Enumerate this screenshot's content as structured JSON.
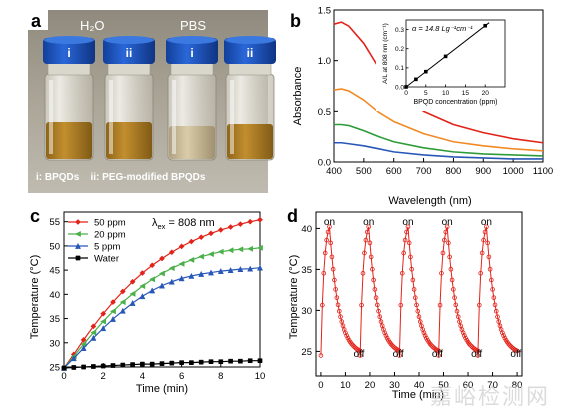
{
  "panel_a": {
    "letter": "a",
    "group_labels": [
      "H₂O",
      "PBS"
    ],
    "vial_labels": [
      "i",
      "ii",
      "i",
      "ii"
    ],
    "caption": "i: BPQDs    ii: PEG-modified BPQDs",
    "colors": {
      "bg_top": "#9a9384",
      "bg_bottom": "#b7b2a6",
      "cap": "#1d56c4",
      "liquid_dark": "#a8781c",
      "liquid_light": "#c9b47e"
    }
  },
  "chart_data": [
    {
      "id": "panel_b",
      "letter": "b",
      "type": "line",
      "xlabel": "Wavelength (nm)",
      "ylabel": "Absorbance",
      "xlim": [
        400,
        1100
      ],
      "ylim": [
        0.0,
        1.5
      ],
      "xticks": [
        400,
        500,
        600,
        700,
        800,
        900,
        1000,
        1100
      ],
      "yticks": [
        0.0,
        0.5,
        1.0,
        1.5
      ],
      "ytick_labels": [
        "0.0",
        "0.5",
        "1.0",
        "1.5"
      ],
      "x": [
        400,
        425,
        450,
        500,
        550,
        600,
        700,
        800,
        900,
        1000,
        1100
      ],
      "series": [
        {
          "color": "#e2231a",
          "values": [
            1.36,
            1.38,
            1.34,
            1.17,
            0.93,
            0.74,
            0.5,
            0.37,
            0.29,
            0.23,
            0.19
          ]
        },
        {
          "color": "#f08a24",
          "values": [
            0.71,
            0.72,
            0.7,
            0.61,
            0.49,
            0.4,
            0.28,
            0.2,
            0.16,
            0.13,
            0.11
          ]
        },
        {
          "color": "#2e9b3a",
          "values": [
            0.37,
            0.37,
            0.36,
            0.31,
            0.25,
            0.2,
            0.14,
            0.1,
            0.08,
            0.07,
            0.06
          ]
        },
        {
          "color": "#2857b8",
          "values": [
            0.19,
            0.19,
            0.18,
            0.16,
            0.13,
            0.1,
            0.07,
            0.05,
            0.04,
            0.03,
            0.03
          ]
        }
      ],
      "inset": {
        "type": "scatter",
        "xlabel": "BPQD concentration (ppm)",
        "ylabel": "A/L at 808 nm (cm⁻¹)",
        "xlim": [
          0,
          25
        ],
        "ylim": [
          0,
          0.35
        ],
        "xticks": [
          0,
          5,
          10,
          15,
          20
        ],
        "yticks": [
          0.0,
          0.1,
          0.2,
          0.3
        ],
        "annotation": "α = 14.8 Lg⁻¹cm⁻¹",
        "x": [
          0,
          2.5,
          5,
          10,
          20
        ],
        "y": [
          0.0,
          0.04,
          0.08,
          0.16,
          0.32
        ]
      }
    },
    {
      "id": "panel_c",
      "letter": "c",
      "type": "line",
      "xlabel": "Time (min)",
      "ylabel": "Temperature (°C)",
      "xlim": [
        0,
        10
      ],
      "ylim": [
        25,
        57
      ],
      "xticks": [
        0,
        2,
        4,
        6,
        8,
        10
      ],
      "yticks": [
        25,
        30,
        35,
        40,
        45,
        50,
        55
      ],
      "annotation": "λ",
      "annotation_sub": "ex",
      "annotation_rest": " = 808 nm",
      "x": [
        0,
        0.5,
        1,
        1.5,
        2,
        2.5,
        3,
        3.5,
        4,
        4.5,
        5,
        5.5,
        6,
        6.5,
        7,
        7.5,
        8,
        8.5,
        9,
        9.5,
        10
      ],
      "series": [
        {
          "name": "50 ppm",
          "color": "#e2231a",
          "marker": "diamond",
          "values": [
            24.8,
            27.6,
            30.6,
            33.4,
            36.0,
            38.4,
            40.6,
            42.6,
            44.4,
            46.0,
            47.4,
            48.7,
            49.9,
            50.9,
            51.8,
            52.6,
            53.3,
            53.9,
            54.5,
            55.0,
            55.4
          ]
        },
        {
          "name": "20 ppm",
          "color": "#4bb04b",
          "marker": "triangle-left",
          "values": [
            24.8,
            27.2,
            29.7,
            32.1,
            34.4,
            36.5,
            38.4,
            40.1,
            41.7,
            43.1,
            44.3,
            45.4,
            46.3,
            47.1,
            47.8,
            48.3,
            48.8,
            49.1,
            49.3,
            49.4,
            49.6
          ]
        },
        {
          "name": "5 ppm",
          "color": "#2857b8",
          "marker": "triangle-up",
          "values": [
            24.8,
            26.8,
            28.9,
            31.0,
            33.0,
            34.9,
            36.6,
            38.2,
            39.6,
            40.8,
            41.8,
            42.6,
            43.3,
            43.8,
            44.2,
            44.5,
            44.8,
            45.0,
            45.2,
            45.3,
            45.5
          ]
        },
        {
          "name": "Water",
          "color": "#000000",
          "marker": "square",
          "values": [
            24.8,
            24.9,
            25.0,
            25.1,
            25.2,
            25.3,
            25.4,
            25.5,
            25.6,
            25.6,
            25.7,
            25.8,
            25.9,
            25.9,
            26.0,
            26.1,
            26.1,
            26.2,
            26.2,
            26.3,
            26.3
          ]
        }
      ],
      "legend": "top-left"
    },
    {
      "id": "panel_d",
      "letter": "d",
      "type": "line",
      "xlabel": "Time (min)",
      "ylabel": "Temperature (°C)",
      "xlim": [
        -2,
        82
      ],
      "ylim": [
        22,
        42
      ],
      "xticks": [
        0,
        10,
        20,
        30,
        40,
        50,
        60,
        70,
        80
      ],
      "yticks": [
        25,
        30,
        35,
        40
      ],
      "color": "#e2231a",
      "cycles": [
        0,
        16,
        32,
        48,
        64
      ],
      "peak": 40.2,
      "min": 24.5,
      "on_labels": [
        "on",
        "on",
        "on",
        "on",
        "on"
      ],
      "off_labels": [
        "off",
        "off",
        "off",
        "off",
        "off"
      ]
    }
  ],
  "watermark": "嘉峪检测网"
}
